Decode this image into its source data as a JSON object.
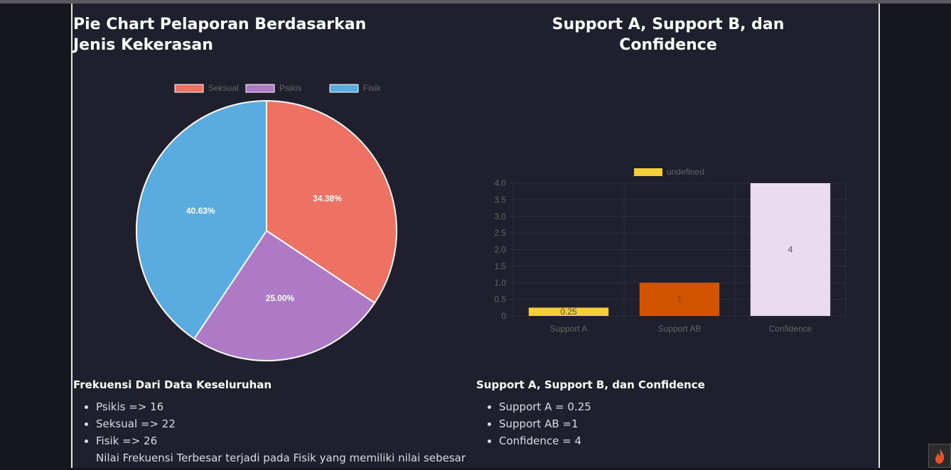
{
  "left": {
    "title": "Pie Chart Pelaporan Berdasarkan Jenis Kekerasan",
    "freq_heading": "Frekuensi Dari Data Keseluruhan",
    "freq_items": [
      "Psikis => 16",
      "Seksual => 22",
      "Fisik => 26"
    ],
    "note": "Nilai Frekuensi Terbesar terjadi pada Fisik yang memiliki nilai sebesar"
  },
  "right": {
    "title": "Support A, Support B, dan Confidence",
    "heading": "Support A, Support B, dan Confidence",
    "items": [
      "Support A = 0.25",
      "Support AB =1",
      "Confidence = 4"
    ]
  },
  "colors": {
    "seksual": "#ee7264",
    "psikis": "#ae7ac6",
    "fisik": "#5aabe0",
    "support_a": "#f4cf3a",
    "support_ab": "#d35400",
    "confidence": "#e9dcef"
  },
  "icons": {
    "corner": "flame-icon"
  },
  "chart_data": [
    {
      "type": "pie",
      "title": "",
      "labels": [
        "Seksual",
        "Psikis",
        "Fisik"
      ],
      "values": [
        22,
        16,
        26
      ],
      "percent_labels": [
        "34.38%",
        "25.00%",
        "40.63%"
      ],
      "colors": [
        "#ee7264",
        "#ae7ac6",
        "#5aabe0"
      ],
      "legend": "top"
    },
    {
      "type": "bar",
      "title": "",
      "categories": [
        "Support A",
        "Support AB",
        "Confidence"
      ],
      "values": [
        0.25,
        1,
        4
      ],
      "data_labels": [
        "0.25",
        "1",
        "4"
      ],
      "colors": [
        "#f4cf3a",
        "#d35400",
        "#e9dcef"
      ],
      "legend_label": "undefined",
      "legend": "top",
      "ylim": [
        0,
        4
      ],
      "yticks": [
        "0",
        "0.5",
        "1.0",
        "1.5",
        "2.0",
        "2.5",
        "3.0",
        "3.5",
        "4.0"
      ],
      "grid": true
    }
  ]
}
